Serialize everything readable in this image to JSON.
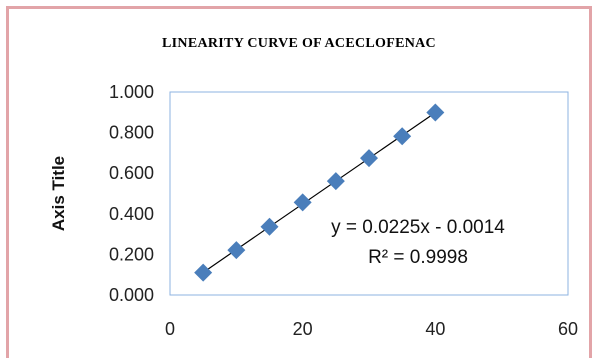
{
  "chart_data": {
    "type": "scatter",
    "title": "LINEARITY  CURVE OF ACECLOFENAC",
    "xlabel": "",
    "ylabel": "Axis Title",
    "x": [
      5,
      10,
      15,
      20,
      25,
      30,
      35,
      40
    ],
    "series": [
      {
        "values": [
          0.11,
          0.221,
          0.336,
          0.456,
          0.561,
          0.674,
          0.782,
          0.899
        ]
      }
    ],
    "xlim": [
      0,
      60
    ],
    "ylim": [
      0,
      1
    ],
    "xticks": [
      "0",
      "20",
      "40",
      "60"
    ],
    "yticks": [
      "0.000",
      "0.200",
      "0.400",
      "0.600",
      "0.800",
      "1.000"
    ],
    "trendline": {
      "slope": 0.0225,
      "intercept": -0.0014
    },
    "equation_label": "y = 0.0225x - 0.0014",
    "r2_label": "R² = 0.9998",
    "marker_color": "#4a7ebb",
    "plot_border_color": "#8db3e2"
  }
}
